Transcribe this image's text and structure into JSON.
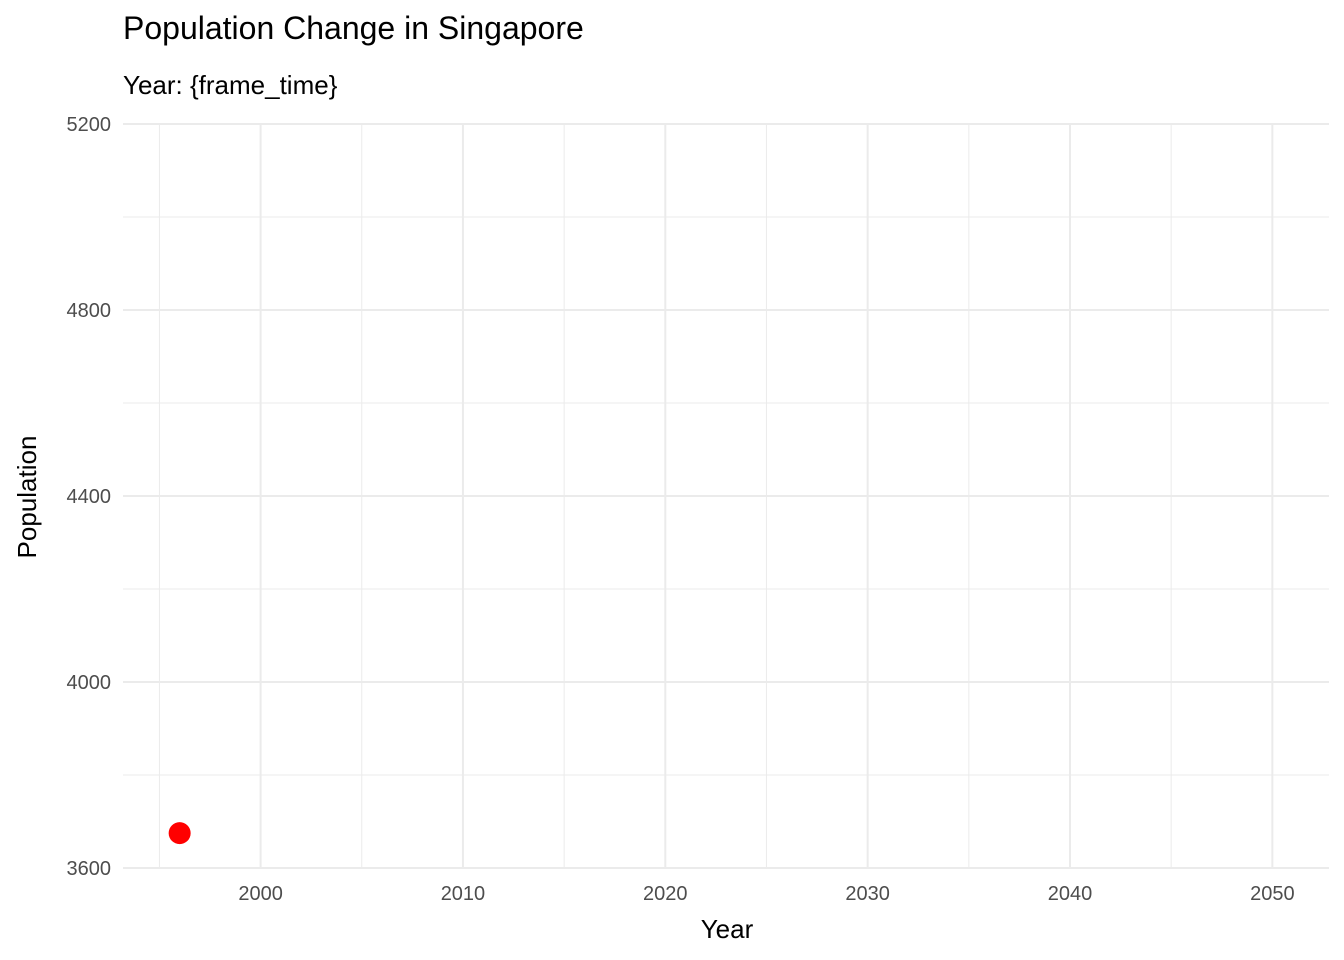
{
  "chart_data": {
    "type": "scatter",
    "title": "Population Change in Singapore",
    "subtitle": "Year: {frame_time}",
    "xlabel": "Year",
    "ylabel": "Population",
    "xlim": [
      1993.2,
      2052.8
    ],
    "ylim": [
      3600,
      5200
    ],
    "x_ticks": [
      2000,
      2010,
      2020,
      2030,
      2040,
      2050
    ],
    "x_minor_ticks": [
      1995,
      2005,
      2015,
      2025,
      2035,
      2045
    ],
    "y_ticks": [
      3600,
      4000,
      4400,
      4800,
      5200
    ],
    "y_minor_ticks": [
      3800,
      4200,
      4600,
      5000
    ],
    "grid": true,
    "legend": "none",
    "point_color": "#ff0000",
    "grid_color": "#ebebeb",
    "points": [
      {
        "x": 1996,
        "y": 3675
      }
    ]
  }
}
